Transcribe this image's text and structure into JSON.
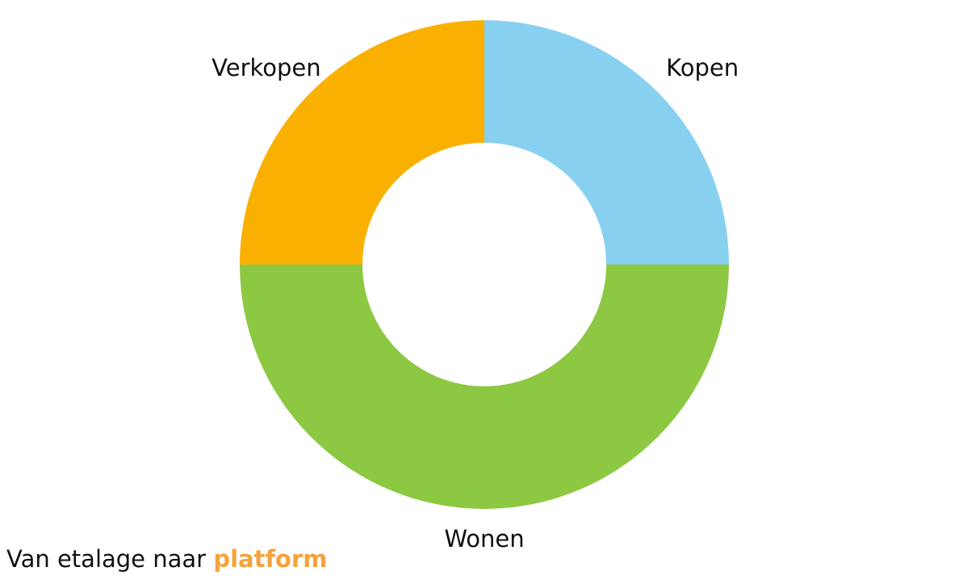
{
  "chart_data": {
    "type": "donut",
    "categories": [
      "Kopen",
      "Wonen",
      "Verkopen"
    ],
    "values": [
      25,
      50,
      25
    ],
    "colors": [
      "#87d0f0",
      "#8dc843",
      "#f9b000"
    ]
  },
  "caption": {
    "text": "Van etalage naar",
    "highlight": "platform"
  }
}
